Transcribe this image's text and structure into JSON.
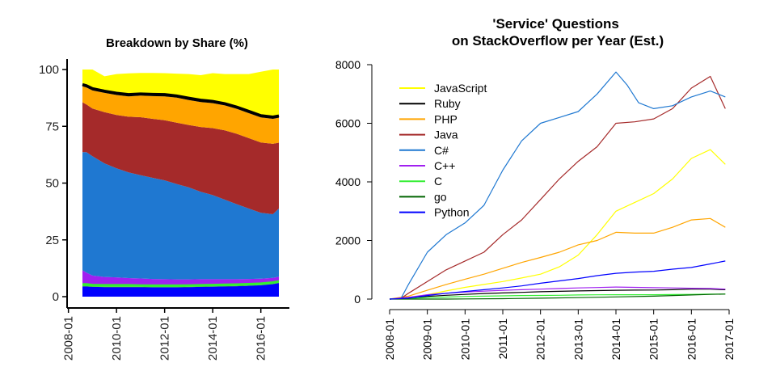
{
  "chart_data": [
    {
      "type": "area",
      "stacked": true,
      "title": "Breakdown by Share (%)",
      "xlabel": "",
      "ylabel": "",
      "x_tick_labels": [
        "2008-01",
        "2010-01",
        "2012-01",
        "2014-01",
        "2016-01"
      ],
      "y_ticks": [
        0,
        25,
        50,
        75,
        100
      ],
      "ylim": [
        0,
        100
      ],
      "x": [
        "2008-08",
        "2008-10",
        "2009-01",
        "2009-07",
        "2010-01",
        "2010-07",
        "2011-01",
        "2011-07",
        "2012-01",
        "2012-07",
        "2013-01",
        "2013-07",
        "2014-01",
        "2014-07",
        "2015-01",
        "2015-07",
        "2016-01",
        "2016-07",
        "2016-10"
      ],
      "series": [
        {
          "name": "Python",
          "color": "#0000ff",
          "values": [
            4.5,
            4.5,
            4.3,
            4.2,
            4.2,
            4.2,
            4.2,
            4.1,
            4.1,
            4.1,
            4.2,
            4.3,
            4.4,
            4.5,
            4.6,
            4.8,
            5.0,
            5.5,
            6.0
          ]
        },
        {
          "name": "go",
          "color": "#006400",
          "values": [
            0.1,
            0.1,
            0.1,
            0.1,
            0.1,
            0.1,
            0.1,
            0.1,
            0.1,
            0.1,
            0.1,
            0.1,
            0.1,
            0.1,
            0.1,
            0.1,
            0.1,
            0.1,
            0.1
          ]
        },
        {
          "name": "C",
          "color": "#33ee33",
          "values": [
            1.0,
            1.0,
            0.9,
            0.9,
            0.9,
            0.9,
            0.8,
            0.8,
            0.8,
            0.8,
            0.8,
            0.8,
            0.8,
            0.8,
            0.8,
            0.8,
            0.8,
            0.8,
            0.8
          ]
        },
        {
          "name": "C++",
          "color": "#a020f0",
          "values": [
            6.0,
            5.0,
            4.0,
            3.5,
            3.3,
            3.0,
            2.9,
            2.8,
            2.7,
            2.6,
            2.5,
            2.5,
            2.4,
            2.3,
            2.2,
            2.1,
            2.0,
            1.9,
            1.9
          ]
        },
        {
          "name": "C#",
          "color": "#1f78d1",
          "values": [
            52.0,
            53.0,
            52.5,
            50.0,
            48.0,
            46.5,
            45.5,
            44.5,
            43.5,
            42.0,
            40.5,
            38.5,
            37.0,
            35.0,
            33.0,
            31.0,
            29.0,
            28.0,
            30.0
          ]
        },
        {
          "name": "Java",
          "color": "#a52a2a",
          "values": [
            22.0,
            21.0,
            21.0,
            22.5,
            23.5,
            24.5,
            25.5,
            26.0,
            26.5,
            27.0,
            27.5,
            28.5,
            29.5,
            30.5,
            31.0,
            31.0,
            31.0,
            31.0,
            29.0
          ]
        },
        {
          "name": "PHP",
          "color": "#ffa500",
          "values": [
            7.0,
            7.5,
            8.0,
            8.5,
            8.8,
            9.0,
            9.5,
            10.0,
            10.5,
            11.0,
            11.0,
            11.0,
            11.0,
            11.0,
            11.0,
            11.0,
            11.0,
            11.0,
            11.0
          ]
        },
        {
          "name": "Ruby",
          "color": "#000000",
          "values": [
            0.8,
            0.8,
            0.8,
            0.8,
            0.8,
            0.8,
            0.8,
            0.8,
            0.8,
            0.8,
            0.8,
            0.8,
            0.8,
            0.8,
            0.8,
            0.8,
            0.8,
            0.8,
            0.8
          ]
        },
        {
          "name": "JavaScript",
          "color": "#ffff00",
          "values": [
            6.6,
            7.1,
            8.4,
            6.5,
            8.4,
            9.3,
            9.2,
            9.4,
            9.4,
            9.8,
            10.6,
            11.0,
            12.4,
            13.0,
            14.5,
            16.4,
            19.3,
            20.9,
            20.4
          ]
        }
      ]
    },
    {
      "type": "line",
      "title": "'Service' Questions\non StackOverflow per Year (Est.)",
      "xlabel": "",
      "ylabel": "",
      "x_tick_labels": [
        "2008-01",
        "2009-01",
        "2010-01",
        "2011-01",
        "2012-01",
        "2013-01",
        "2014-01",
        "2015-01",
        "2016-01",
        "2017-01"
      ],
      "y_ticks": [
        0,
        2000,
        4000,
        6000,
        8000
      ],
      "ylim": [
        0,
        8000
      ],
      "legend_position": "top-left",
      "series": [
        {
          "name": "JavaScript",
          "color": "#ffff00",
          "points": [
            [
              2008.0,
              0
            ],
            [
              2008.5,
              40
            ],
            [
              2009.0,
              150
            ],
            [
              2009.5,
              280
            ],
            [
              2010.0,
              400
            ],
            [
              2010.5,
              500
            ],
            [
              2011.0,
              600
            ],
            [
              2011.5,
              720
            ],
            [
              2012.0,
              850
            ],
            [
              2012.5,
              1100
            ],
            [
              2013.0,
              1500
            ],
            [
              2013.5,
              2200
            ],
            [
              2014.0,
              3000
            ],
            [
              2014.5,
              3300
            ],
            [
              2015.0,
              3600
            ],
            [
              2015.5,
              4100
            ],
            [
              2016.0,
              4800
            ],
            [
              2016.5,
              5100
            ],
            [
              2016.9,
              4600
            ]
          ]
        },
        {
          "name": "Ruby",
          "color": "#000000",
          "points": [
            [
              2008.0,
              0
            ],
            [
              2008.5,
              40
            ],
            [
              2009.0,
              90
            ],
            [
              2009.5,
              130
            ],
            [
              2010.0,
              160
            ],
            [
              2010.5,
              190
            ],
            [
              2011.0,
              210
            ],
            [
              2011.5,
              230
            ],
            [
              2012.0,
              250
            ],
            [
              2012.5,
              265
            ],
            [
              2013.0,
              280
            ],
            [
              2013.5,
              290
            ],
            [
              2014.0,
              300
            ],
            [
              2014.5,
              305
            ],
            [
              2015.0,
              310
            ],
            [
              2015.5,
              320
            ],
            [
              2016.0,
              340
            ],
            [
              2016.5,
              340
            ],
            [
              2016.9,
              320
            ]
          ]
        },
        {
          "name": "PHP",
          "color": "#ffa500",
          "points": [
            [
              2008.0,
              0
            ],
            [
              2008.5,
              100
            ],
            [
              2009.0,
              300
            ],
            [
              2009.5,
              500
            ],
            [
              2010.0,
              680
            ],
            [
              2010.5,
              850
            ],
            [
              2011.0,
              1050
            ],
            [
              2011.5,
              1250
            ],
            [
              2012.0,
              1420
            ],
            [
              2012.5,
              1600
            ],
            [
              2013.0,
              1850
            ],
            [
              2013.5,
              2000
            ],
            [
              2014.0,
              2280
            ],
            [
              2014.5,
              2250
            ],
            [
              2015.0,
              2250
            ],
            [
              2015.5,
              2450
            ],
            [
              2016.0,
              2700
            ],
            [
              2016.5,
              2750
            ],
            [
              2016.9,
              2450
            ]
          ]
        },
        {
          "name": "Java",
          "color": "#a52a2a",
          "points": [
            [
              2008.0,
              0
            ],
            [
              2008.3,
              20
            ],
            [
              2008.5,
              200
            ],
            [
              2009.0,
              600
            ],
            [
              2009.5,
              1000
            ],
            [
              2010.0,
              1300
            ],
            [
              2010.5,
              1600
            ],
            [
              2011.0,
              2200
            ],
            [
              2011.5,
              2700
            ],
            [
              2012.0,
              3400
            ],
            [
              2012.5,
              4100
            ],
            [
              2013.0,
              4700
            ],
            [
              2013.5,
              5200
            ],
            [
              2014.0,
              6000
            ],
            [
              2014.5,
              6050
            ],
            [
              2015.0,
              6150
            ],
            [
              2015.5,
              6500
            ],
            [
              2016.0,
              7200
            ],
            [
              2016.5,
              7600
            ],
            [
              2016.9,
              6500
            ]
          ]
        },
        {
          "name": "C#",
          "color": "#1f78d1",
          "points": [
            [
              2008.0,
              0
            ],
            [
              2008.3,
              20
            ],
            [
              2008.5,
              500
            ],
            [
              2009.0,
              1600
            ],
            [
              2009.5,
              2200
            ],
            [
              2010.0,
              2600
            ],
            [
              2010.5,
              3200
            ],
            [
              2011.0,
              4400
            ],
            [
              2011.5,
              5400
            ],
            [
              2012.0,
              6000
            ],
            [
              2012.5,
              6200
            ],
            [
              2013.0,
              6400
            ],
            [
              2013.5,
              7000
            ],
            [
              2014.0,
              7750
            ],
            [
              2014.3,
              7300
            ],
            [
              2014.6,
              6700
            ],
            [
              2015.0,
              6500
            ],
            [
              2015.5,
              6600
            ],
            [
              2016.0,
              6900
            ],
            [
              2016.5,
              7100
            ],
            [
              2016.9,
              6900
            ]
          ]
        },
        {
          "name": "C++",
          "color": "#a020f0",
          "points": [
            [
              2008.0,
              0
            ],
            [
              2008.5,
              60
            ],
            [
              2009.0,
              150
            ],
            [
              2009.5,
              200
            ],
            [
              2010.0,
              240
            ],
            [
              2010.5,
              270
            ],
            [
              2011.0,
              300
            ],
            [
              2011.5,
              320
            ],
            [
              2012.0,
              340
            ],
            [
              2012.5,
              360
            ],
            [
              2013.0,
              380
            ],
            [
              2013.5,
              395
            ],
            [
              2014.0,
              410
            ],
            [
              2014.5,
              400
            ],
            [
              2015.0,
              390
            ],
            [
              2015.5,
              380
            ],
            [
              2016.0,
              370
            ],
            [
              2016.5,
              360
            ],
            [
              2016.9,
              340
            ]
          ]
        },
        {
          "name": "C",
          "color": "#33ee33",
          "points": [
            [
              2008.0,
              0
            ],
            [
              2008.5,
              20
            ],
            [
              2009.0,
              50
            ],
            [
              2009.5,
              70
            ],
            [
              2010.0,
              90
            ],
            [
              2010.5,
              100
            ],
            [
              2011.0,
              110
            ],
            [
              2011.5,
              120
            ],
            [
              2012.0,
              125
            ],
            [
              2012.5,
              130
            ],
            [
              2013.0,
              140
            ],
            [
              2013.5,
              145
            ],
            [
              2014.0,
              150
            ],
            [
              2014.5,
              150
            ],
            [
              2015.0,
              150
            ],
            [
              2015.5,
              155
            ],
            [
              2016.0,
              160
            ],
            [
              2016.5,
              170
            ],
            [
              2016.9,
              170
            ]
          ]
        },
        {
          "name": "go",
          "color": "#006400",
          "points": [
            [
              2008.0,
              0
            ],
            [
              2009.5,
              0
            ],
            [
              2010.0,
              5
            ],
            [
              2011.0,
              15
            ],
            [
              2012.0,
              30
            ],
            [
              2013.0,
              50
            ],
            [
              2014.0,
              75
            ],
            [
              2015.0,
              100
            ],
            [
              2015.5,
              120
            ],
            [
              2016.0,
              140
            ],
            [
              2016.5,
              160
            ],
            [
              2016.9,
              170
            ]
          ]
        },
        {
          "name": "Python",
          "color": "#0000ff",
          "points": [
            [
              2008.0,
              0
            ],
            [
              2008.5,
              30
            ],
            [
              2009.0,
              120
            ],
            [
              2009.5,
              200
            ],
            [
              2010.0,
              260
            ],
            [
              2010.5,
              320
            ],
            [
              2011.0,
              380
            ],
            [
              2011.5,
              450
            ],
            [
              2012.0,
              540
            ],
            [
              2012.5,
              620
            ],
            [
              2013.0,
              700
            ],
            [
              2013.5,
              800
            ],
            [
              2014.0,
              880
            ],
            [
              2014.5,
              920
            ],
            [
              2015.0,
              950
            ],
            [
              2015.5,
              1020
            ],
            [
              2016.0,
              1080
            ],
            [
              2016.5,
              1200
            ],
            [
              2016.9,
              1300
            ]
          ]
        }
      ]
    }
  ]
}
